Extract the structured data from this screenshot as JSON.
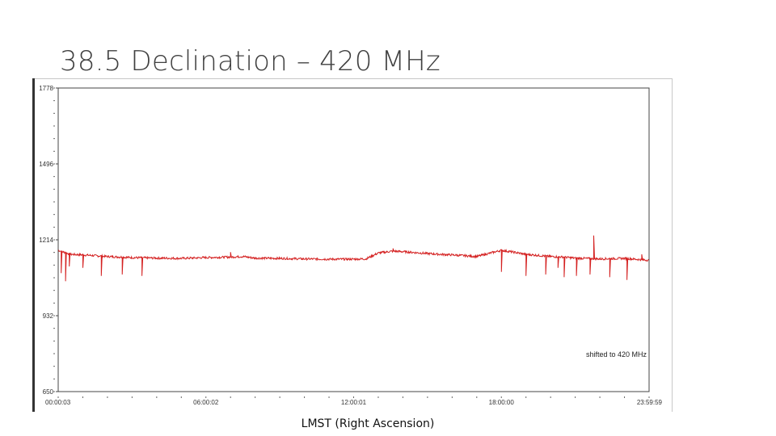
{
  "slide": {
    "title": "38.5 Declination – 420 MHz"
  },
  "chart_data": {
    "type": "line",
    "title": "",
    "xlabel": "LMST (Right Ascension)",
    "ylabel": "",
    "x_ticks": [
      "00:00:03",
      "06:00:02",
      "12:00:01",
      "18:00:00",
      "23:59:59"
    ],
    "y_ticks": [
      650,
      932,
      1214,
      1496,
      1778
    ],
    "y_tick_labels": [
      "650",
      "932",
      "1214",
      "1496",
      "1778"
    ],
    "xlim": [
      0,
      24
    ],
    "ylim": [
      650,
      1778
    ],
    "grid": false,
    "annotation": "shifted to 420 MHz",
    "series": [
      {
        "color": "#d42020",
        "x": [
          0.0,
          0.5,
          1.0,
          2.0,
          3.0,
          4.0,
          5.0,
          6.0,
          7.0,
          7.5,
          8.0,
          9.0,
          10.0,
          11.0,
          11.8,
          12.5,
          13.0,
          13.6,
          14.0,
          15.0,
          15.5,
          16.0,
          17.0,
          18.0,
          18.5,
          19.0,
          20.0,
          20.5,
          21.0,
          22.0,
          23.0,
          23.99
        ],
        "baseline": [
          1175,
          1160,
          1158,
          1152,
          1148,
          1146,
          1145,
          1148,
          1150,
          1152,
          1146,
          1145,
          1143,
          1142,
          1142,
          1143,
          1165,
          1172,
          1170,
          1163,
          1160,
          1158,
          1152,
          1175,
          1168,
          1160,
          1152,
          1150,
          1146,
          1143,
          1145,
          1138
        ],
        "dips": [
          {
            "x": 0.12,
            "y": 1090
          },
          {
            "x": 0.3,
            "y": 1060
          },
          {
            "x": 0.45,
            "y": 1115
          },
          {
            "x": 1.0,
            "y": 1110
          },
          {
            "x": 1.75,
            "y": 1080
          },
          {
            "x": 2.6,
            "y": 1085
          },
          {
            "x": 3.4,
            "y": 1080
          },
          {
            "x": 18.0,
            "y": 1095
          },
          {
            "x": 19.0,
            "y": 1080
          },
          {
            "x": 19.8,
            "y": 1085
          },
          {
            "x": 20.55,
            "y": 1075
          },
          {
            "x": 21.05,
            "y": 1080
          },
          {
            "x": 21.6,
            "y": 1085
          },
          {
            "x": 22.4,
            "y": 1075
          },
          {
            "x": 23.1,
            "y": 1065
          },
          {
            "x": 20.3,
            "y": 1110
          }
        ],
        "spikes": [
          {
            "x": 7.0,
            "y": 1168
          },
          {
            "x": 13.6,
            "y": 1182
          },
          {
            "x": 21.75,
            "y": 1230
          },
          {
            "x": 23.7,
            "y": 1160
          }
        ]
      }
    ]
  }
}
